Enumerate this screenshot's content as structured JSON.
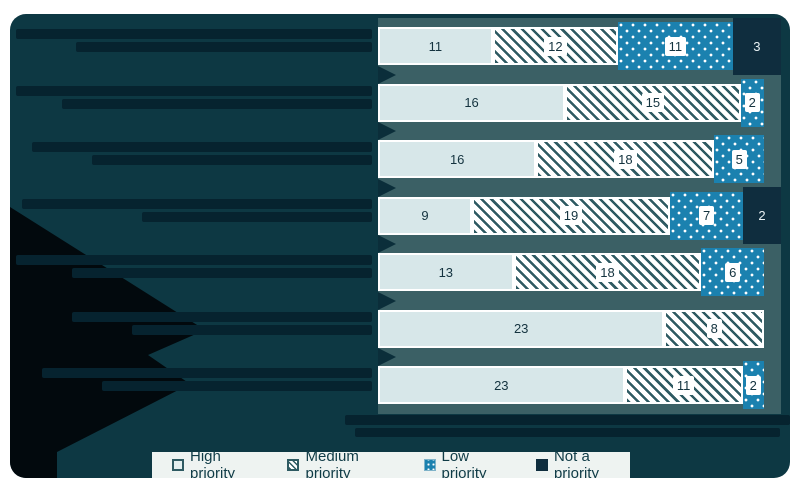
{
  "colors": {
    "page_background": "#ffffff",
    "canvas_background": "#0d3843",
    "chevron_color": "#0b2e3a",
    "row_band": "#3b6065",
    "high_fill": "#d7e7e9",
    "medium_stripe": "#2e5a62",
    "low_fill": "#1b81af",
    "not_fill": "#0f2d3e",
    "legend_background": "#eef3f1",
    "legend_text": "#0f3b46",
    "value_text_dark": "#14333f",
    "illegible_text_color": "#06232f",
    "arrow_black": "#02090d"
  },
  "legend": {
    "items": [
      {
        "id": "high",
        "label": "High priority"
      },
      {
        "id": "medium",
        "label": "Medium priority"
      },
      {
        "id": "low",
        "label": "Low priority"
      },
      {
        "id": "not",
        "label": "Not a priority"
      }
    ]
  },
  "chart_data": {
    "type": "bar",
    "orientation": "horizontal",
    "stacked": true,
    "normalized_width": true,
    "grid": false,
    "legend_position": "bottom",
    "series_names": [
      "High priority",
      "Medium priority",
      "Low priority",
      "Not a priority"
    ],
    "categories": [
      "",
      "",
      "",
      "",
      "",
      "",
      ""
    ],
    "labels_illegible": true,
    "caption_illegible": true,
    "rows": [
      {
        "segments": [
          {
            "series": "high",
            "value": 11
          },
          {
            "series": "medium",
            "value": 12
          },
          {
            "series": "low",
            "value": 11
          },
          {
            "series": "not",
            "value": 3
          }
        ]
      },
      {
        "segments": [
          {
            "series": "high",
            "value": 16
          },
          {
            "series": "medium",
            "value": 15
          },
          {
            "series": "low",
            "value": 2
          }
        ]
      },
      {
        "segments": [
          {
            "series": "high",
            "value": 16
          },
          {
            "series": "medium",
            "value": 18
          },
          {
            "series": "low",
            "value": 5
          }
        ]
      },
      {
        "segments": [
          {
            "series": "high",
            "value": 9
          },
          {
            "series": "medium",
            "value": 19
          },
          {
            "series": "low",
            "value": 7
          },
          {
            "series": "not",
            "value": 2
          }
        ]
      },
      {
        "segments": [
          {
            "series": "high",
            "value": 13
          },
          {
            "series": "medium",
            "value": 18
          },
          {
            "series": "low",
            "value": 6
          }
        ]
      },
      {
        "segments": [
          {
            "series": "high",
            "value": 23
          },
          {
            "series": "medium",
            "value": 8
          }
        ]
      },
      {
        "segments": [
          {
            "series": "high",
            "value": 23
          },
          {
            "series": "medium",
            "value": 11
          },
          {
            "series": "low",
            "value": 2
          }
        ]
      }
    ]
  }
}
